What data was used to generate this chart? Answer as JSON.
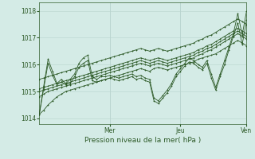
{
  "xlabel": "Pression niveau de la mer( hPa )",
  "bg_color": "#d4ebe6",
  "grid_color": "#b8d4ce",
  "line_color": "#2d5a27",
  "ylim": [
    1013.8,
    1018.3
  ],
  "ytick_values": [
    1014,
    1015,
    1016,
    1017,
    1018
  ],
  "day_positions": [
    0.33,
    0.66,
    1.0
  ],
  "day_labels": [
    "Mer",
    "Jeu",
    "Ven"
  ],
  "num_points": 48,
  "series": [
    [
      1014.15,
      1014.3,
      1014.5,
      1014.65,
      1014.8,
      1014.9,
      1015.0,
      1015.05,
      1015.1,
      1015.15,
      1015.2,
      1015.25,
      1015.3,
      1015.35,
      1015.4,
      1015.45,
      1015.5,
      1015.55,
      1015.6,
      1015.65,
      1015.7,
      1015.75,
      1015.8,
      1015.85,
      1015.8,
      1015.75,
      1015.85,
      1015.9,
      1015.85,
      1015.8,
      1015.85,
      1015.9,
      1015.95,
      1016.0,
      1016.05,
      1016.1,
      1016.2,
      1016.25,
      1016.3,
      1016.35,
      1016.4,
      1016.5,
      1016.6,
      1016.7,
      1016.8,
      1016.9,
      1016.8,
      1016.7
    ],
    [
      1014.8,
      1014.9,
      1015.0,
      1015.05,
      1015.1,
      1015.15,
      1015.2,
      1015.25,
      1015.3,
      1015.35,
      1015.4,
      1015.45,
      1015.5,
      1015.55,
      1015.6,
      1015.65,
      1015.7,
      1015.75,
      1015.8,
      1015.85,
      1015.9,
      1015.95,
      1016.0,
      1016.05,
      1016.0,
      1015.95,
      1016.0,
      1016.05,
      1016.0,
      1015.95,
      1016.0,
      1016.05,
      1016.1,
      1016.15,
      1016.2,
      1016.25,
      1016.35,
      1016.4,
      1016.5,
      1016.55,
      1016.65,
      1016.75,
      1016.85,
      1016.95,
      1017.05,
      1017.15,
      1017.05,
      1016.95
    ],
    [
      1015.0,
      1015.05,
      1015.1,
      1015.15,
      1015.2,
      1015.25,
      1015.3,
      1015.35,
      1015.4,
      1015.45,
      1015.5,
      1015.55,
      1015.6,
      1015.65,
      1015.7,
      1015.75,
      1015.8,
      1015.85,
      1015.9,
      1015.95,
      1016.0,
      1016.05,
      1016.1,
      1016.15,
      1016.1,
      1016.05,
      1016.1,
      1016.15,
      1016.1,
      1016.05,
      1016.1,
      1016.15,
      1016.2,
      1016.25,
      1016.3,
      1016.35,
      1016.45,
      1016.5,
      1016.6,
      1016.65,
      1016.75,
      1016.85,
      1016.95,
      1017.05,
      1017.15,
      1017.25,
      1017.15,
      1017.05
    ],
    [
      1015.1,
      1015.15,
      1015.2,
      1015.25,
      1015.3,
      1015.35,
      1015.4,
      1015.45,
      1015.5,
      1015.55,
      1015.6,
      1015.65,
      1015.7,
      1015.75,
      1015.8,
      1015.85,
      1015.9,
      1015.95,
      1016.0,
      1016.05,
      1016.1,
      1016.15,
      1016.2,
      1016.25,
      1016.2,
      1016.15,
      1016.2,
      1016.25,
      1016.2,
      1016.15,
      1016.2,
      1016.25,
      1016.3,
      1016.35,
      1016.4,
      1016.45,
      1016.55,
      1016.6,
      1016.7,
      1016.75,
      1016.85,
      1016.95,
      1017.05,
      1017.15,
      1017.25,
      1017.35,
      1017.25,
      1017.15
    ],
    [
      1015.45,
      1015.5,
      1015.55,
      1015.6,
      1015.65,
      1015.7,
      1015.75,
      1015.8,
      1015.85,
      1015.9,
      1015.95,
      1016.0,
      1016.05,
      1016.1,
      1016.15,
      1016.2,
      1016.25,
      1016.3,
      1016.35,
      1016.4,
      1016.45,
      1016.5,
      1016.55,
      1016.6,
      1016.55,
      1016.5,
      1016.55,
      1016.6,
      1016.55,
      1016.5,
      1016.55,
      1016.6,
      1016.65,
      1016.7,
      1016.75,
      1016.8,
      1016.9,
      1016.95,
      1017.05,
      1017.1,
      1017.2,
      1017.3,
      1017.4,
      1017.5,
      1017.6,
      1017.7,
      1017.6,
      1017.5
    ],
    [
      1014.15,
      1015.1,
      1016.05,
      1015.6,
      1015.25,
      1015.35,
      1015.25,
      1015.3,
      1015.55,
      1015.9,
      1016.05,
      1016.15,
      1015.4,
      1015.35,
      1015.4,
      1015.45,
      1015.5,
      1015.45,
      1015.4,
      1015.45,
      1015.5,
      1015.55,
      1015.45,
      1015.5,
      1015.4,
      1015.35,
      1014.65,
      1014.55,
      1014.75,
      1014.95,
      1015.2,
      1015.55,
      1015.75,
      1015.95,
      1016.1,
      1016.05,
      1015.9,
      1015.8,
      1016.05,
      1015.5,
      1015.05,
      1015.55,
      1016.0,
      1016.55,
      1017.05,
      1017.55,
      1016.75,
      1017.65
    ],
    [
      1014.15,
      1015.2,
      1016.2,
      1015.75,
      1015.3,
      1015.45,
      1015.3,
      1015.45,
      1015.65,
      1016.05,
      1016.25,
      1016.35,
      1015.55,
      1015.45,
      1015.55,
      1015.55,
      1015.6,
      1015.55,
      1015.5,
      1015.55,
      1015.6,
      1015.65,
      1015.55,
      1015.6,
      1015.5,
      1015.45,
      1014.75,
      1014.65,
      1014.85,
      1015.05,
      1015.3,
      1015.65,
      1015.85,
      1016.05,
      1016.25,
      1016.15,
      1016.0,
      1015.9,
      1016.15,
      1015.65,
      1015.15,
      1015.65,
      1016.15,
      1016.65,
      1017.15,
      1017.9,
      1017.1,
      1018.0
    ]
  ]
}
